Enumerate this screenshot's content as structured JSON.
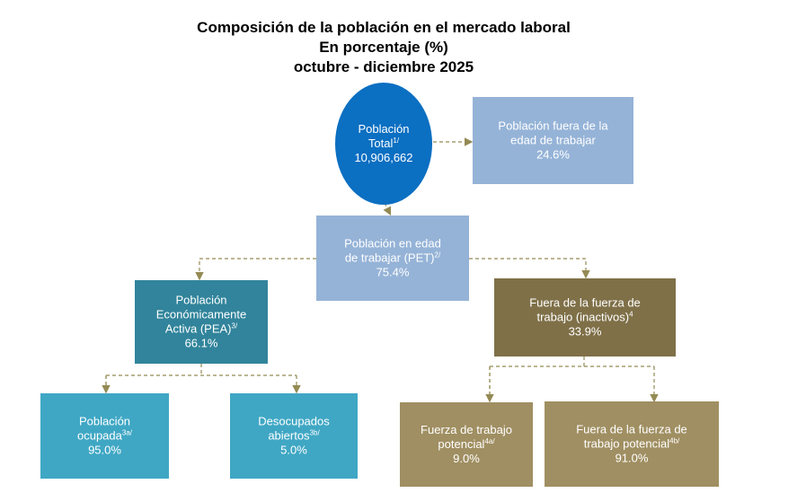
{
  "title": [
    "Composición  de la población  en el mercado laboral",
    "En porcentaje  (%)",
    "octubre  - diciembre  2025"
  ],
  "nodes": [
    {
      "lines": [
        "Población",
        "Total"
      ],
      "sup": "1/",
      "value": "10,906,662"
    },
    {
      "lines": [
        "Población fuera de la",
        "edad de trabajar"
      ],
      "value": "24.6%"
    },
    {
      "lines": [
        "Población en edad",
        "de trabajar (PET)"
      ],
      "sup": "2/",
      "value": "75.4%"
    },
    {
      "lines": [
        "Población",
        "Económicamente",
        "Activa (PEA)"
      ],
      "sup": "3/",
      "value": "66.1%"
    },
    {
      "lines": [
        "Fuera de la fuerza de",
        "trabajo (inactivos)"
      ],
      "sup": "4",
      "value": "33.9%"
    },
    {
      "lines": [
        "Población",
        "ocupada"
      ],
      "sup": "3a/",
      "value": "95.0%"
    },
    {
      "lines": [
        "Desocupados",
        "abiertos"
      ],
      "sup": "3b/",
      "value": "5.0%"
    },
    {
      "lines": [
        "Fuerza de trabajo",
        "potencial"
      ],
      "sup": "4a/",
      "value": "9.0%"
    },
    {
      "lines": [
        "Fuera de la fuerza de",
        "trabajo potencial"
      ],
      "sup": "4b/",
      "value": "91.0%"
    }
  ]
}
